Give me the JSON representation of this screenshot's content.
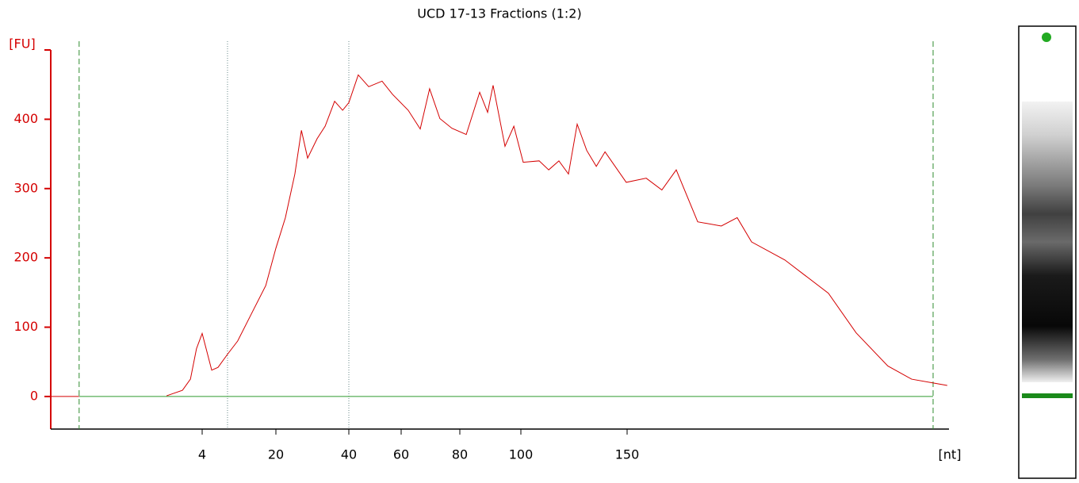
{
  "chart_data": {
    "type": "line",
    "title": "UCD 17-13 Fractions (1:2)",
    "y_label": "[FU]",
    "x_label": "[nt]",
    "x": [
      3.06,
      3.48,
      3.69,
      3.85,
      4,
      4.86,
      6.07,
      7.44,
      9.51,
      11.7,
      15.2,
      17.8,
      20,
      22.6,
      25.2,
      27,
      28.7,
      31.3,
      33.5,
      36.1,
      38.3,
      40,
      43.6,
      47.6,
      52.7,
      56.7,
      62.4,
      66.5,
      69.7,
      73.2,
      77.3,
      82.1,
      86.5,
      89.1,
      90.9,
      94.8,
      97.7,
      101.1,
      108.6,
      113.1,
      117.9,
      122.4,
      126.5,
      131,
      135.5,
      139.6,
      149.6,
      158.9,
      166.2,
      172.9,
      182.9,
      193.9,
      201.3,
      208,
      223.5,
      243.8,
      256.7,
      271.5,
      282.6,
      293.7,
      299.2
    ],
    "series": [
      {
        "color": "#d40000",
        "values": [
          1,
          9,
          25,
          69,
          91,
          69,
          38,
          42,
          61,
          80,
          126,
          160,
          214,
          258,
          321,
          384,
          344,
          372,
          390,
          426,
          413,
          424,
          464,
          447,
          455,
          436,
          413,
          386,
          444,
          401,
          387,
          378,
          439,
          410,
          449,
          361,
          390,
          338,
          340,
          327,
          340,
          321,
          393,
          355,
          332,
          353,
          309,
          315,
          298,
          327,
          252,
          246,
          258,
          223,
          197,
          149,
          92,
          44,
          25,
          19,
          16
        ]
      }
    ],
    "xlim": [
      0,
      300
    ],
    "xticks": [
      4,
      20,
      40,
      60,
      80,
      100,
      150
    ],
    "ylim": [
      -47,
      500
    ],
    "yticks": [
      0,
      100,
      200,
      300,
      400
    ],
    "marker_lines": [
      0.75,
      292.6
    ],
    "divider_lines": [
      9.5,
      40
    ]
  }
}
